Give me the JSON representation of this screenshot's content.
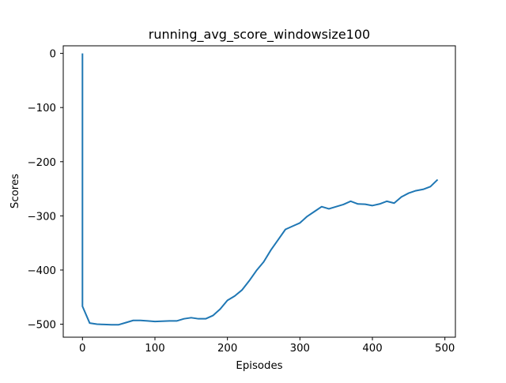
{
  "chart_data": {
    "type": "line",
    "title": "running_avg_score_windowsize100",
    "xlabel": "Episodes",
    "ylabel": "Scores",
    "xlim": [
      -26.5,
      514.5
    ],
    "ylim": [
      -524,
      14
    ],
    "xticks": [
      0,
      100,
      200,
      300,
      400,
      500
    ],
    "yticks": [
      0,
      -100,
      -200,
      -300,
      -400,
      -500
    ],
    "xtick_labels": [
      "0",
      "100",
      "200",
      "300",
      "400",
      "500"
    ],
    "ytick_labels": [
      "0",
      "−100",
      "−200",
      "−300",
      "−400",
      "−500"
    ],
    "grid": false,
    "series": [
      {
        "color": "#1f77b4",
        "x": [
          0,
          0,
          10,
          20,
          30,
          40,
          50,
          60,
          70,
          80,
          90,
          100,
          110,
          120,
          130,
          140,
          150,
          160,
          170,
          180,
          190,
          200,
          210,
          220,
          230,
          240,
          250,
          260,
          270,
          280,
          290,
          300,
          310,
          320,
          330,
          340,
          350,
          360,
          370,
          380,
          390,
          400,
          410,
          420,
          430,
          440,
          450,
          460,
          470,
          480,
          490
        ],
        "values": [
          0,
          -467,
          -498,
          -500,
          -500.5,
          -501,
          -501,
          -497,
          -493,
          -493,
          -494,
          -495,
          -494.5,
          -494,
          -494,
          -490,
          -488,
          -490,
          -490,
          -484,
          -472,
          -456,
          -448,
          -437,
          -420,
          -401,
          -385,
          -363,
          -344,
          -325,
          -319,
          -313,
          -301,
          -292,
          -283,
          -287,
          -283,
          -279,
          -273,
          -278,
          -278.5,
          -281,
          -278,
          -273,
          -276.5,
          -265,
          -258,
          -253.5,
          -251,
          -246,
          -233
        ]
      }
    ]
  }
}
